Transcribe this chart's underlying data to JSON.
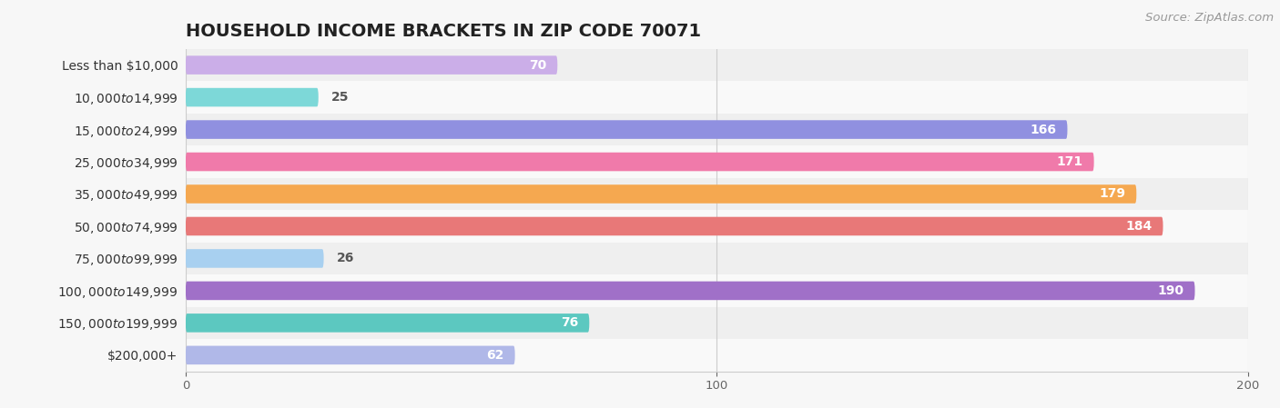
{
  "title": "HOUSEHOLD INCOME BRACKETS IN ZIP CODE 70071",
  "source_text": "Source: ZipAtlas.com",
  "categories": [
    "Less than $10,000",
    "$10,000 to $14,999",
    "$15,000 to $24,999",
    "$25,000 to $34,999",
    "$35,000 to $49,999",
    "$50,000 to $74,999",
    "$75,000 to $99,999",
    "$100,000 to $149,999",
    "$150,000 to $199,999",
    "$200,000+"
  ],
  "values": [
    70,
    25,
    166,
    171,
    179,
    184,
    26,
    190,
    76,
    62
  ],
  "bar_colors": [
    "#cbaee8",
    "#7dd8d8",
    "#9090e0",
    "#f07aaa",
    "#f5a850",
    "#e87878",
    "#a8d0f0",
    "#a070c8",
    "#5cc8c0",
    "#b0b8e8"
  ],
  "bg_color": "#f7f7f7",
  "row_bg_even": "#efefef",
  "row_bg_odd": "#f9f9f9",
  "xlim": [
    0,
    200
  ],
  "xticks": [
    0,
    100,
    200
  ],
  "label_value_color_inside": "#ffffff",
  "label_value_color_outside": "#555555",
  "title_fontsize": 14,
  "label_fontsize": 10,
  "value_fontsize": 10,
  "source_fontsize": 9.5,
  "bar_height": 0.58,
  "threshold_inside": 45
}
